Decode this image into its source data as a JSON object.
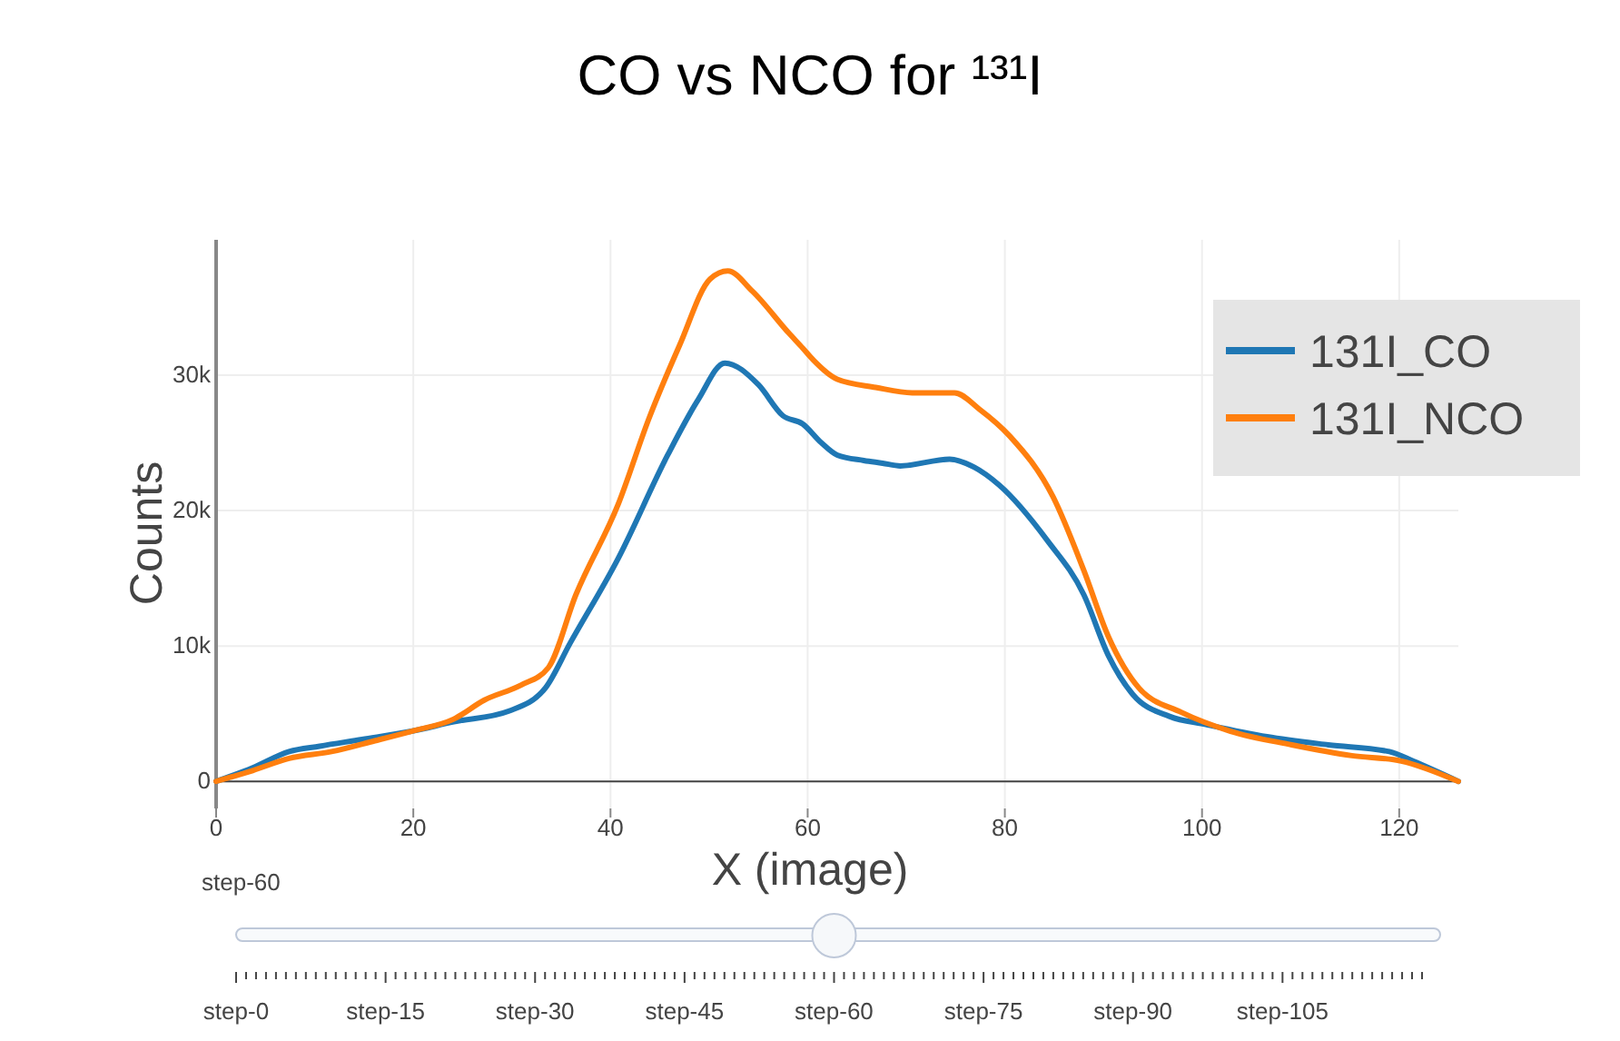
{
  "chart_data": {
    "type": "line",
    "title": "CO vs NCO for ¹³¹I",
    "xlabel": "X (image)",
    "ylabel": "Counts",
    "series": [
      {
        "name": "131I_CO",
        "color": "#1f77b4",
        "x": [
          0,
          3.7,
          7.4,
          10.5,
          14.8,
          19.8,
          24.1,
          29.7,
          33.4,
          35.9,
          40.8,
          45.8,
          48.9,
          51.6,
          55,
          57.5,
          59.5,
          61.4,
          63,
          65.7,
          67.6,
          69.4,
          74.4,
          76.9,
          79.4,
          84.3,
          88,
          90.5,
          93,
          96.7,
          100.4,
          106.6,
          112.8,
          119,
          121.4,
          126
        ],
        "values": [
          0,
          1000,
          2200,
          2600,
          3100,
          3700,
          4400,
          5200,
          6900,
          10200,
          16500,
          24100,
          28200,
          30900,
          29300,
          27000,
          26400,
          25000,
          24100,
          23700,
          23500,
          23300,
          23800,
          23200,
          21900,
          17800,
          13800,
          9300,
          6400,
          4800,
          4200,
          3300,
          2700,
          2200,
          1500,
          0
        ]
      },
      {
        "name": "131I_NCO",
        "color": "#ff7f0e",
        "x": [
          0,
          3.7,
          7.4,
          11.7,
          16.1,
          19.8,
          24.1,
          27.2,
          30.9,
          33.7,
          36.5,
          40.8,
          43.9,
          47,
          50.1,
          51.9,
          54.4,
          58.1,
          59.5,
          60.6,
          63,
          66.9,
          70.6,
          74.9,
          77.4,
          80.5,
          84.9,
          88,
          90.5,
          93.6,
          97.9,
          102.9,
          109.1,
          115.2,
          120.2,
          126
        ],
        "values": [
          0,
          800,
          1700,
          2200,
          3000,
          3700,
          4600,
          6000,
          7100,
          8400,
          13800,
          20500,
          26800,
          32200,
          37100,
          37700,
          36200,
          33100,
          32000,
          31100,
          29700,
          29100,
          28700,
          28700,
          27500,
          25500,
          21000,
          15600,
          10700,
          6900,
          5100,
          3700,
          2700,
          1900,
          1500,
          0
        ]
      }
    ],
    "xlim": [
      0,
      126
    ],
    "xticks": [
      0,
      20,
      40,
      60,
      80,
      100,
      120
    ],
    "ylim": [
      -2000,
      40000
    ],
    "yticks": [
      0,
      {
        "value": 10000,
        "label": "10k"
      },
      {
        "value": 20000,
        "label": "20k"
      },
      {
        "value": 30000,
        "label": "30k"
      }
    ],
    "grid": true,
    "legend": "top right",
    "annotations": [
      "step-60",
      "step-0",
      "step-15",
      "step-30",
      "step-45",
      "step-60",
      "step-75",
      "step-90",
      "step-105"
    ]
  }
}
